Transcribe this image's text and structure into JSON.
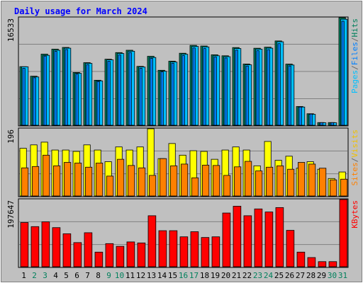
{
  "chart_data": {
    "title": "Daily usage for March 2024",
    "days": [
      "1",
      "2",
      "3",
      "4",
      "5",
      "6",
      "7",
      "8",
      "9",
      "10",
      "11",
      "12",
      "13",
      "14",
      "15",
      "16",
      "17",
      "18",
      "19",
      "20",
      "21",
      "22",
      "23",
      "24",
      "25",
      "26",
      "27",
      "28",
      "29",
      "30",
      "31"
    ],
    "weekend_days": [
      "2",
      "3",
      "9",
      "10",
      "16",
      "17",
      "23",
      "24",
      "30",
      "31"
    ],
    "panels": [
      {
        "type": "bar",
        "name": "hits-pages-files",
        "max_label": "16533",
        "ymax": 16533,
        "legend": [
          {
            "label": "Pages",
            "color": "#00c0ff"
          },
          {
            "label": "/",
            "color": "#666666"
          },
          {
            "label": "Files",
            "color": "#0080ff"
          },
          {
            "label": "/",
            "color": "#666666"
          },
          {
            "label": "Hits",
            "color": "#00805c"
          }
        ],
        "series": [
          {
            "name": "Hits",
            "color": "#00805c",
            "values": [
              9010,
              7540,
              10930,
              11700,
              11960,
              8110,
              9620,
              6920,
              10150,
              11170,
              11530,
              9050,
              10600,
              8450,
              9850,
              11070,
              12280,
              12180,
              10830,
              10680,
              11940,
              9410,
              11840,
              12000,
              12960,
              9400,
              2880,
              1770,
              410,
              410,
              16533
            ]
          },
          {
            "name": "Files",
            "color": "#0080ff",
            "values": [
              8750,
              7300,
              10640,
              11360,
              11640,
              7860,
              9320,
              6720,
              9840,
              10810,
              11180,
              8760,
              10280,
              8200,
              9540,
              10710,
              11890,
              11790,
              10490,
              10340,
              11550,
              9110,
              11460,
              11620,
              12540,
              9110,
              2800,
              1720,
              400,
              400,
              16000
            ]
          },
          {
            "name": "Pages",
            "color": "#00c0ff",
            "values": [
              8990,
              7420,
              10750,
              11530,
              11850,
              7990,
              9510,
              6820,
              10050,
              11030,
              11380,
              8950,
              10420,
              8310,
              9720,
              10910,
              12120,
              12040,
              10680,
              10540,
              11790,
              9290,
              11700,
              11850,
              12830,
              9260,
              2800,
              1680,
              380,
              380,
              16300
            ]
          }
        ]
      },
      {
        "type": "bar",
        "name": "visits-sites",
        "max_label": "196",
        "ymax": 196,
        "legend": [
          {
            "label": "Sites",
            "color": "#ff8000"
          },
          {
            "label": "/",
            "color": "#666666"
          },
          {
            "label": "Visits",
            "color": "#f0c000"
          }
        ],
        "series": [
          {
            "name": "Visits",
            "color": "#ffff00",
            "values": [
              139,
              149,
              157,
              134,
              134,
              130,
              149,
              134,
              100,
              143,
              134,
              143,
              196,
              109,
              153,
              119,
              132,
              130,
              107,
              134,
              143,
              134,
              88,
              159,
              104,
              116,
              81,
              100,
              78,
              51,
              70
            ]
          },
          {
            "name": "Sites",
            "color": "#ff8000",
            "values": [
              82,
              86,
              119,
              88,
              98,
              96,
              84,
              96,
              58,
              107,
              89,
              82,
              60,
              109,
              88,
              93,
              53,
              90,
              89,
              60,
              85,
              101,
              73,
              84,
              88,
              78,
              98,
              93,
              81,
              47,
              49
            ]
          }
        ]
      },
      {
        "type": "bar",
        "name": "kbytes",
        "max_label": "197647",
        "ymax": 197647,
        "legend": [
          {
            "label": "KBytes",
            "color": "#ff0000"
          }
        ],
        "series": [
          {
            "name": "KBytes",
            "color": "#ff0000",
            "values": [
              130000,
              118000,
              132000,
              115000,
              97000,
              71000,
              100000,
              43000,
              68000,
              60000,
              73000,
              70000,
              150000,
              106000,
              106000,
              88000,
              103000,
              86000,
              88000,
              158000,
              178000,
              150000,
              170000,
              161000,
              174000,
              107000,
              43000,
              27000,
              15000,
              15000,
              197647
            ]
          }
        ]
      }
    ]
  }
}
